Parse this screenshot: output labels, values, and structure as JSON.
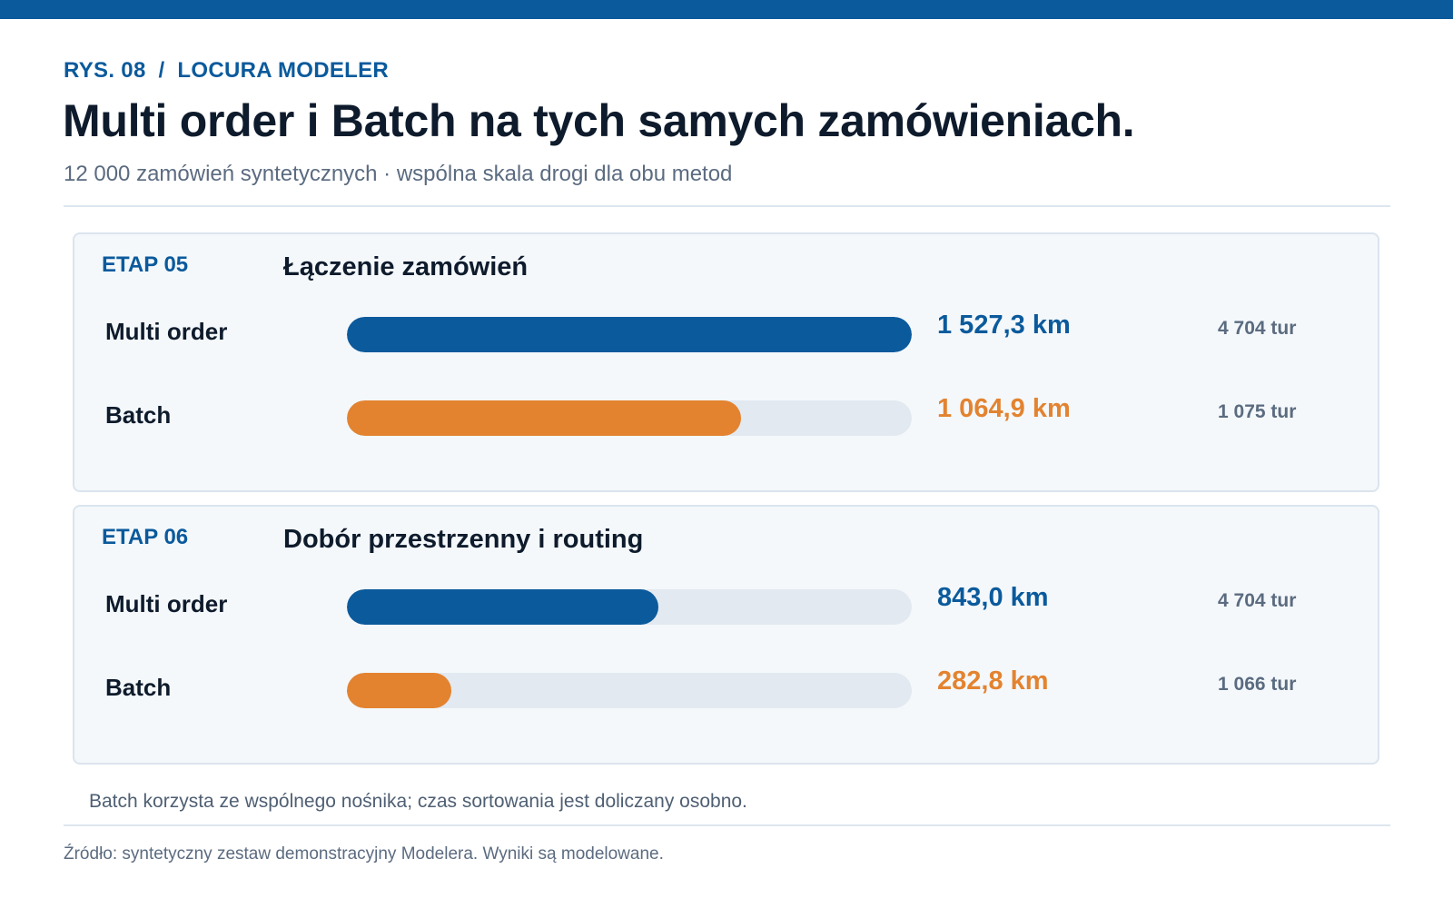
{
  "header": {
    "eyebrow": "RYS. 08  /  LOCURA MODELER",
    "title": "Multi order i Batch na tych samych zamówieniach.",
    "subtitle": "12 000 zamówień syntetycznych · wspólna skala drogi dla obu metod"
  },
  "colors": {
    "multi_order": "#0b5a9c",
    "batch": "#e38330",
    "track": "#e2e9f0",
    "accent": "#0b5a9c"
  },
  "chart_data": {
    "type": "bar",
    "orientation": "horizontal",
    "scale_max_km": 1527.3,
    "unit": "km",
    "series_names": [
      "Multi order",
      "Batch"
    ],
    "panels": [
      {
        "stage": "ETAP 05",
        "title": "Łączenie zamówień",
        "rows": [
          {
            "label": "Multi order",
            "value": 1527.3,
            "value_text": "1 527,3 km",
            "tours_text": "4 704 tur",
            "series": "multi_order"
          },
          {
            "label": "Batch",
            "value": 1064.9,
            "value_text": "1 064,9 km",
            "tours_text": "1 075 tur",
            "series": "batch"
          }
        ]
      },
      {
        "stage": "ETAP 06",
        "title": "Dobór przestrzenny i routing",
        "rows": [
          {
            "label": "Multi order",
            "value": 843.0,
            "value_text": "843,0 km",
            "tours_text": "4 704 tur",
            "series": "multi_order"
          },
          {
            "label": "Batch",
            "value": 282.8,
            "value_text": "282,8 km",
            "tours_text": "1 066 tur",
            "series": "batch"
          }
        ]
      }
    ]
  },
  "footer": {
    "note": "Batch korzysta ze wspólnego nośnika; czas sortowania jest doliczany osobno.",
    "source": "Źródło: syntetyczny zestaw demonstracyjny Modelera. Wyniki są modelowane."
  }
}
